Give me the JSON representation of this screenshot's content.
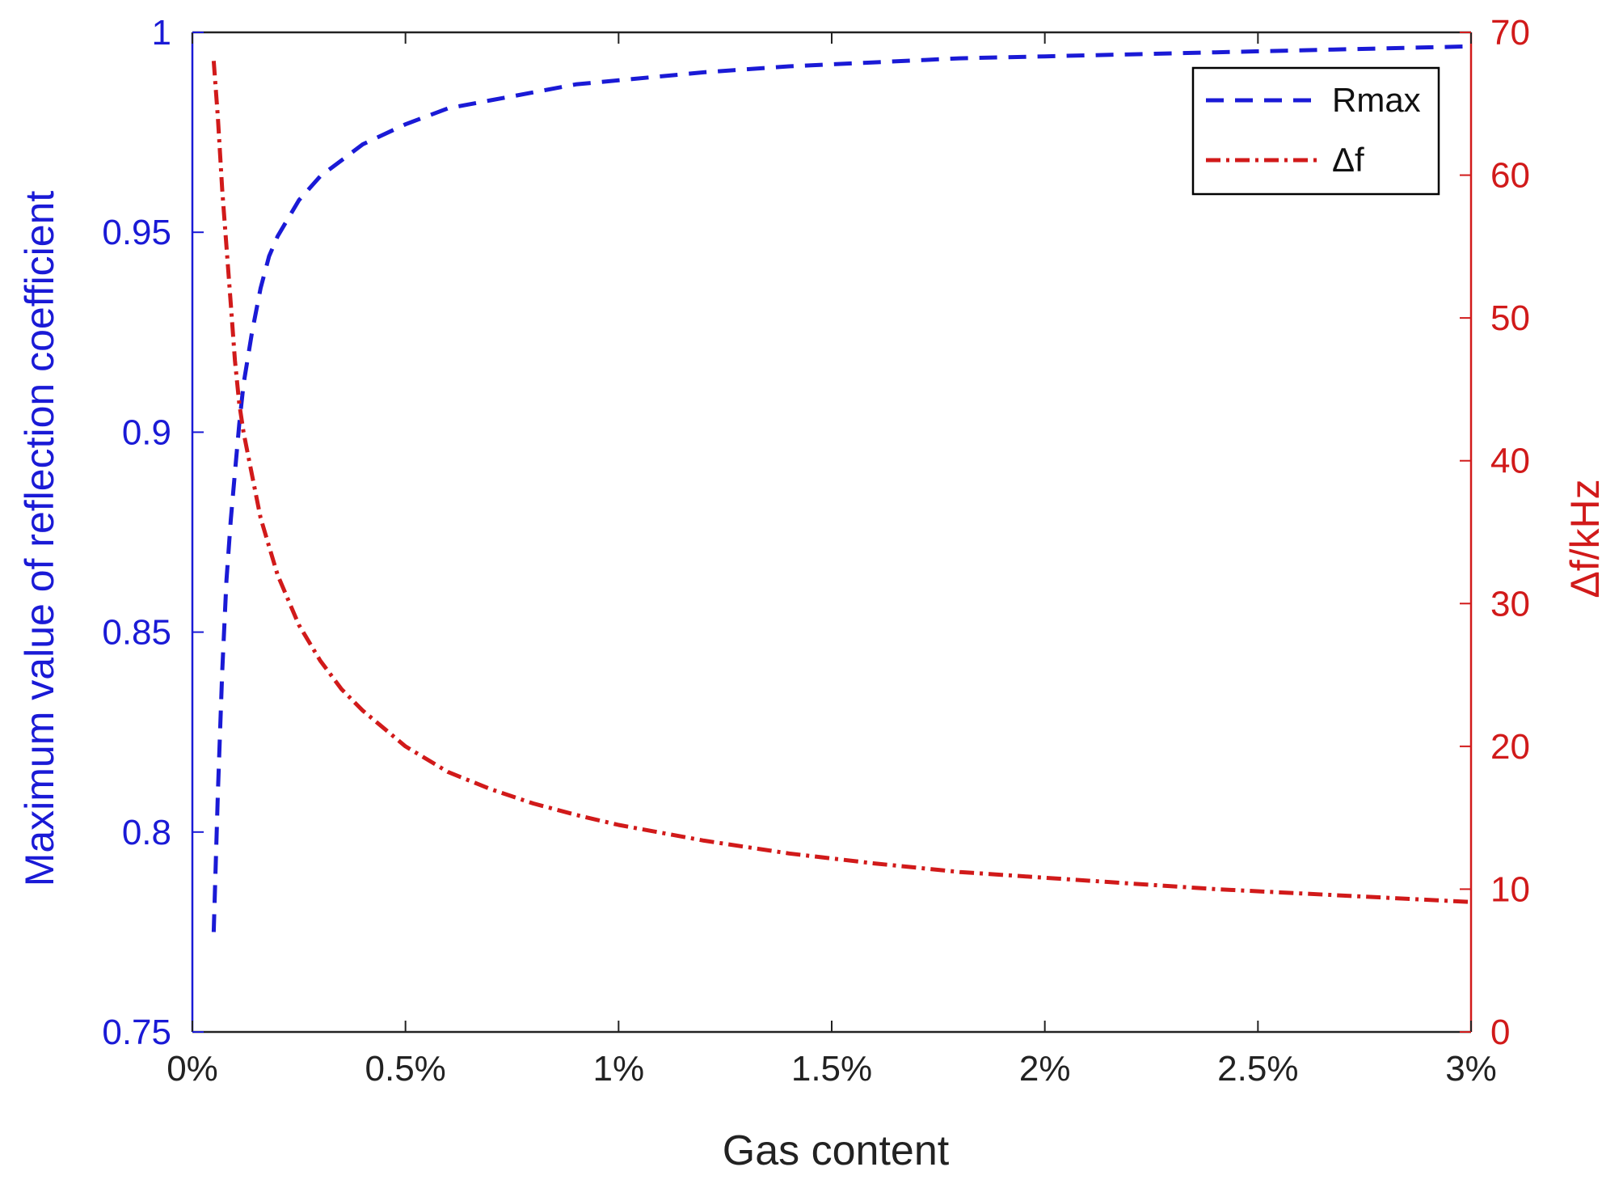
{
  "chart_data": {
    "type": "line",
    "xlabel": "Gas content",
    "ylabel_left": "Maximum value of reflection coefficient",
    "ylabel_right": "Δf/kHz",
    "xlim": [
      0,
      3
    ],
    "ylim_left": [
      0.75,
      1
    ],
    "ylim_right": [
      0,
      70
    ],
    "x_ticks": [
      0,
      0.5,
      1,
      1.5,
      2,
      2.5,
      3
    ],
    "x_tick_labels": [
      "0%",
      "0.5%",
      "1%",
      "1.5%",
      "2%",
      "2.5%",
      "3%"
    ],
    "y_left_ticks": [
      0.75,
      0.8,
      0.85,
      0.9,
      0.95,
      1
    ],
    "y_left_tick_labels": [
      "0.75",
      "0.8",
      "0.85",
      "0.9",
      "0.95",
      "1"
    ],
    "y_right_ticks": [
      0,
      10,
      20,
      30,
      40,
      50,
      60,
      70
    ],
    "y_right_tick_labels": [
      "0",
      "10",
      "20",
      "30",
      "40",
      "50",
      "60",
      "70"
    ],
    "grid": false,
    "legend_position": "top-right",
    "series": [
      {
        "name": "Rmax",
        "axis": "left",
        "color": "#1a1ad6",
        "style": "dashed",
        "x": [
          0.05,
          0.06,
          0.07,
          0.08,
          0.09,
          0.1,
          0.11,
          0.12,
          0.14,
          0.16,
          0.18,
          0.2,
          0.25,
          0.3,
          0.35,
          0.4,
          0.5,
          0.6,
          0.7,
          0.8,
          0.9,
          1.0,
          1.2,
          1.4,
          1.6,
          1.8,
          2.0,
          2.2,
          2.4,
          2.6,
          2.8,
          3.0
        ],
        "y": [
          0.775,
          0.81,
          0.84,
          0.863,
          0.878,
          0.89,
          0.902,
          0.912,
          0.925,
          0.936,
          0.944,
          0.949,
          0.958,
          0.964,
          0.968,
          0.972,
          0.977,
          0.981,
          0.983,
          0.985,
          0.987,
          0.988,
          0.99,
          0.9915,
          0.9925,
          0.9935,
          0.994,
          0.9945,
          0.995,
          0.9955,
          0.996,
          0.9965
        ]
      },
      {
        "name": "Δf",
        "axis": "right",
        "color": "#d11a1a",
        "style": "dashdot",
        "x": [
          0.05,
          0.06,
          0.07,
          0.08,
          0.09,
          0.1,
          0.11,
          0.12,
          0.14,
          0.16,
          0.18,
          0.2,
          0.25,
          0.3,
          0.35,
          0.4,
          0.5,
          0.6,
          0.7,
          0.8,
          0.9,
          1.0,
          1.2,
          1.4,
          1.6,
          1.8,
          2.0,
          2.2,
          2.4,
          2.6,
          2.8,
          3.0
        ],
        "y": [
          68,
          64,
          59,
          55,
          51,
          47,
          44,
          42,
          39,
          36,
          34,
          32,
          28.5,
          26,
          24,
          22.5,
          20,
          18.2,
          17,
          16,
          15.2,
          14.5,
          13.4,
          12.5,
          11.8,
          11.2,
          10.8,
          10.4,
          10.0,
          9.7,
          9.4,
          9.1
        ]
      }
    ]
  }
}
